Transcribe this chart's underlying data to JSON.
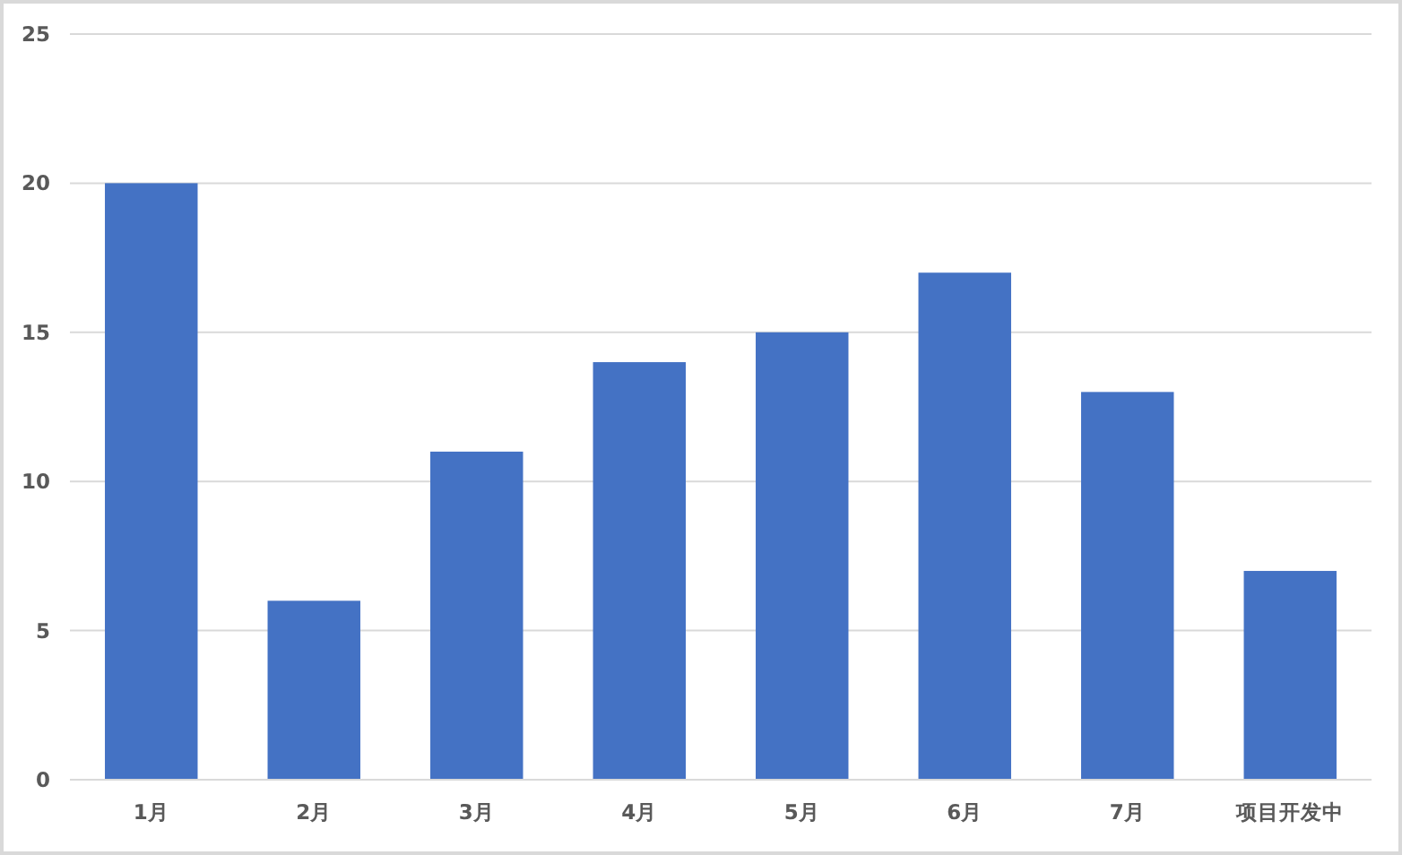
{
  "chart_data": {
    "type": "bar",
    "categories": [
      "1月",
      "2月",
      "3月",
      "4月",
      "5月",
      "6月",
      "7月",
      "项目开发中"
    ],
    "values": [
      20,
      6,
      11,
      14,
      15,
      17,
      13,
      7
    ],
    "color": "#4472c4",
    "ylim": [
      0,
      25
    ],
    "yticks": [
      0,
      5,
      10,
      15,
      20,
      25
    ],
    "grid": "y"
  }
}
